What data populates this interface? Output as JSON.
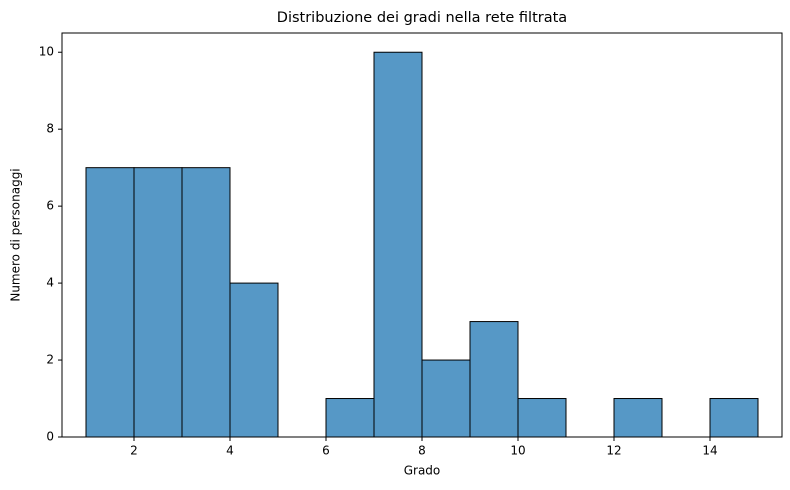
{
  "chart_data": {
    "type": "histogram",
    "title": "Distribuzione dei gradi nella rete filtrata",
    "x_label": "Grado",
    "y_label": "Numero di personaggi",
    "bins": [
      1,
      2,
      3,
      4,
      5,
      6,
      7,
      8,
      9,
      10,
      11,
      12,
      13,
      14,
      15
    ],
    "values": [
      7,
      7,
      7,
      4,
      0,
      1,
      10,
      2,
      3,
      1,
      0,
      1,
      0,
      1
    ],
    "color": "#5698c6",
    "edgecolor": "#000000",
    "xlim": [
      0.5,
      15.5
    ],
    "ylim": [
      0,
      10.5
    ],
    "xticks": [
      2,
      4,
      6,
      8,
      10,
      12,
      14
    ],
    "yticks": [
      0,
      2,
      4,
      6,
      8,
      10
    ]
  }
}
